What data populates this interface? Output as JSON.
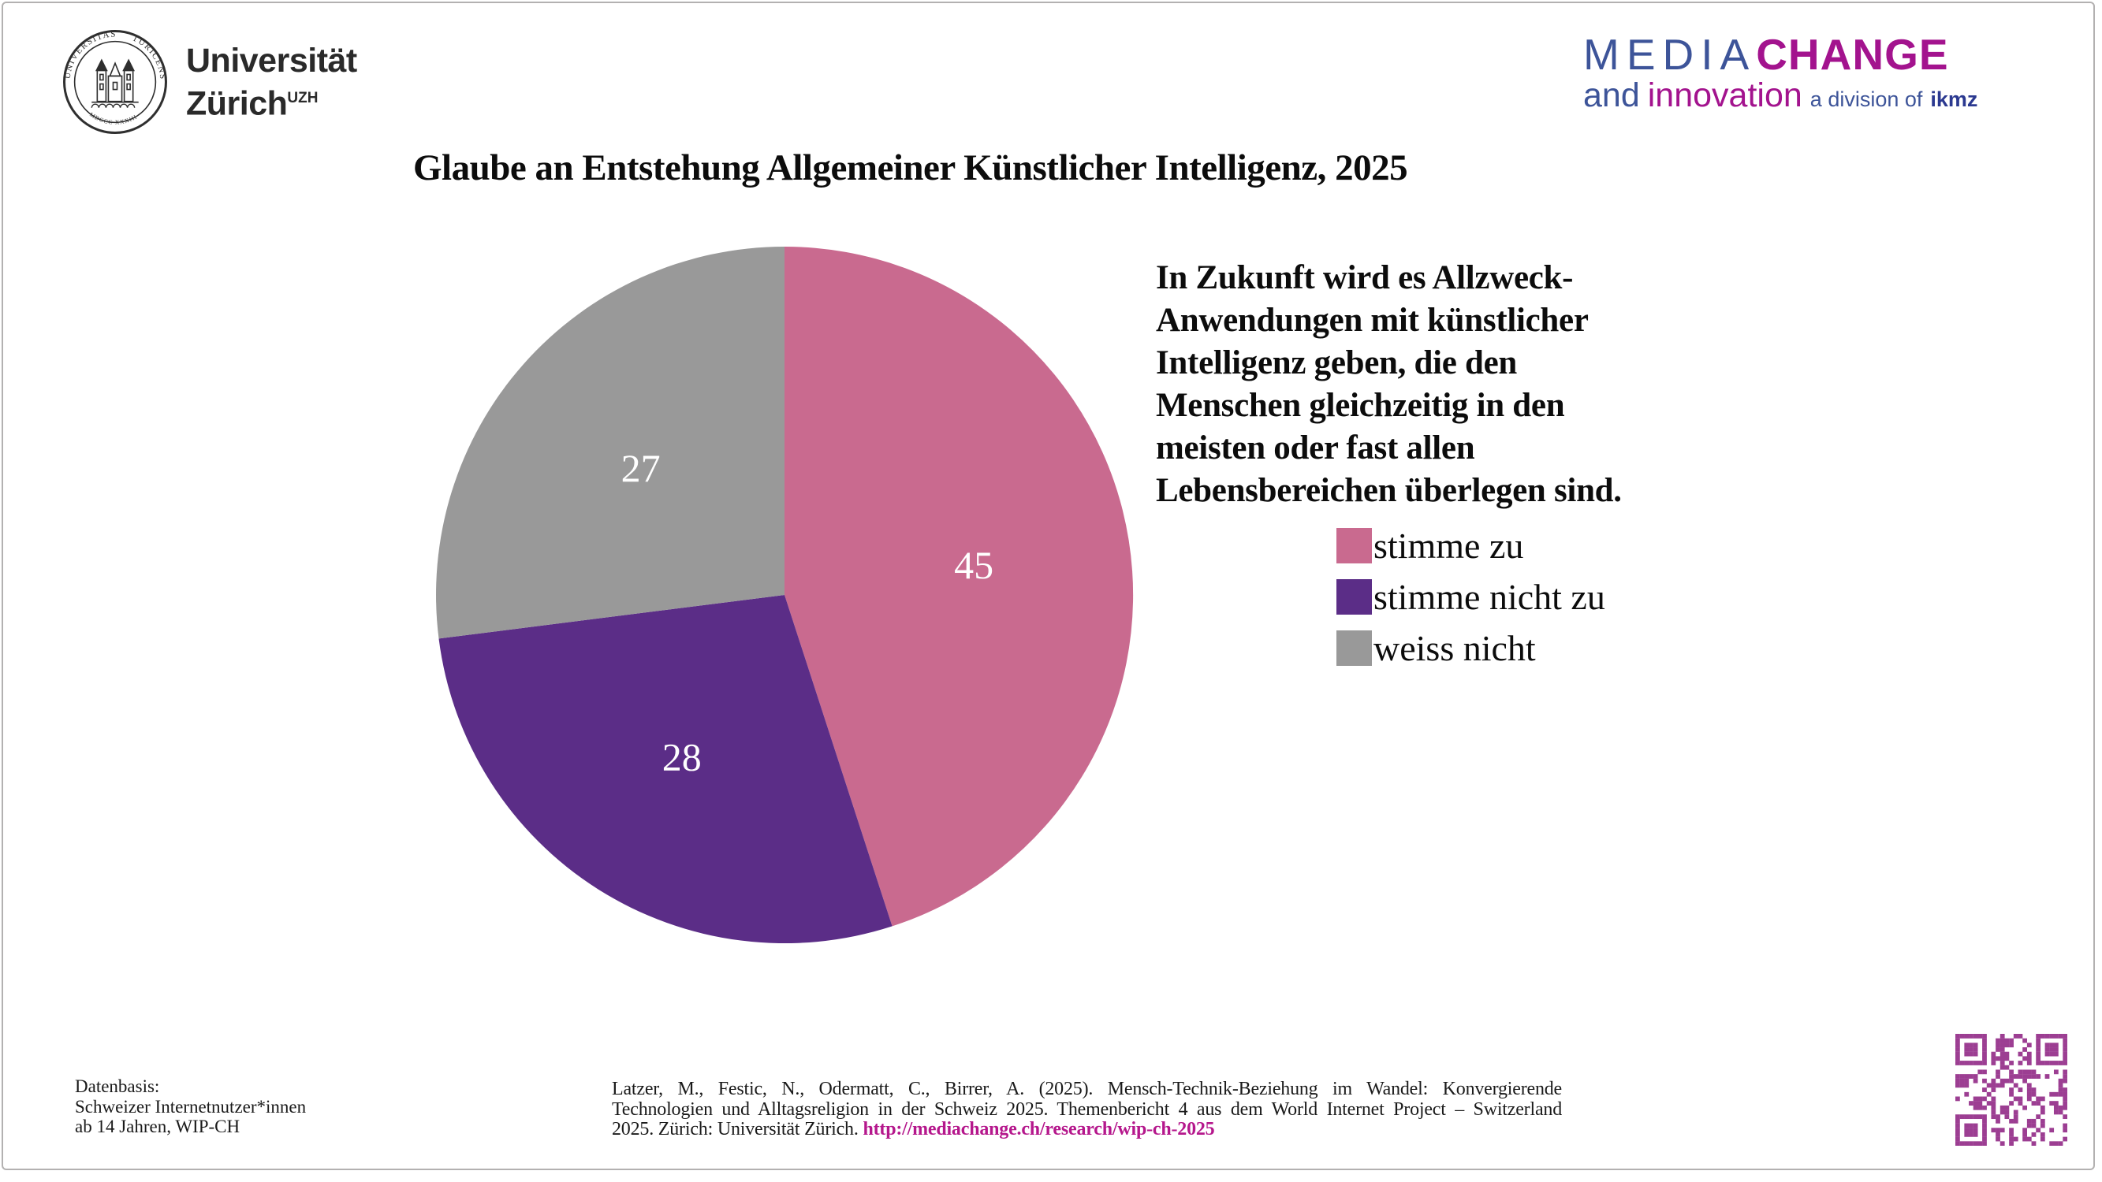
{
  "header": {
    "uzh": {
      "wordmark_line1": "Universität",
      "wordmark_line2": "Zürich",
      "wordmark_sup": "UZH",
      "seal_word_left": "UNIVERSITAS",
      "seal_word_right": "TURICENSIS",
      "seal_bottom": "MDCCC  XXXIII"
    },
    "mediachange": {
      "media": "MEDIA",
      "change": "CHANGE",
      "and": "and",
      "innovation": "innovation",
      "division": "a division of",
      "ikmz": "ikmz",
      "blue": "#3d5499",
      "magenta": "#a3138e",
      "ikmz_blue": "#2b3990"
    }
  },
  "title": "Glaube an Entstehung Allgemeiner Künstlicher Intelligenz, 2025",
  "chart_data": {
    "type": "pie",
    "title": "Glaube an Entstehung Allgemeiner Künstlicher Intelligenz, 2025",
    "labels": [
      "stimme zu",
      "stimme nicht zu",
      "weiss nicht"
    ],
    "values": [
      45,
      28,
      27
    ],
    "unit": "percent",
    "colors": [
      "#c96a8f",
      "#5b2d87",
      "#999999"
    ],
    "start_angle_deg": 0,
    "direction": "clockwise",
    "value_label_color": "#ffffff",
    "legend_position": "right"
  },
  "question": {
    "lines": [
      "In Zukunft wird es Allzweck-",
      "Anwendungen mit künstlicher",
      "Intelligenz geben, die den",
      "Menschen gleichzeitig in den",
      "meisten oder fast allen",
      "Lebensbereichen überlegen sind."
    ]
  },
  "legend": {
    "items": [
      {
        "label": "stimme zu"
      },
      {
        "label": "stimme nicht zu"
      },
      {
        "label": "weiss nicht"
      }
    ]
  },
  "footer": {
    "datenbasis": {
      "line1": "Datenbasis:",
      "line2": "Schweizer Internetnutzer*innen",
      "line3": "ab 14 Jahren, WIP-CH"
    },
    "citation": {
      "line1": "Latzer, M., Festic, N., Odermatt, C., Birrer, A. (2025). Mensch-Technik-Beziehung im Wandel: Konvergierende",
      "line2": "Technologien und Alltagsreligion in der Schweiz 2025. Themenbericht 4 aus dem World Internet Project – Switzerland",
      "line3_prefix": "2025. Zürich: Universität Zürich. ",
      "link_text": "http://mediachange.ch/research/wip-ch-2025",
      "link_color": "#b5178c"
    }
  },
  "qr": {
    "color": "#9c3e92"
  }
}
